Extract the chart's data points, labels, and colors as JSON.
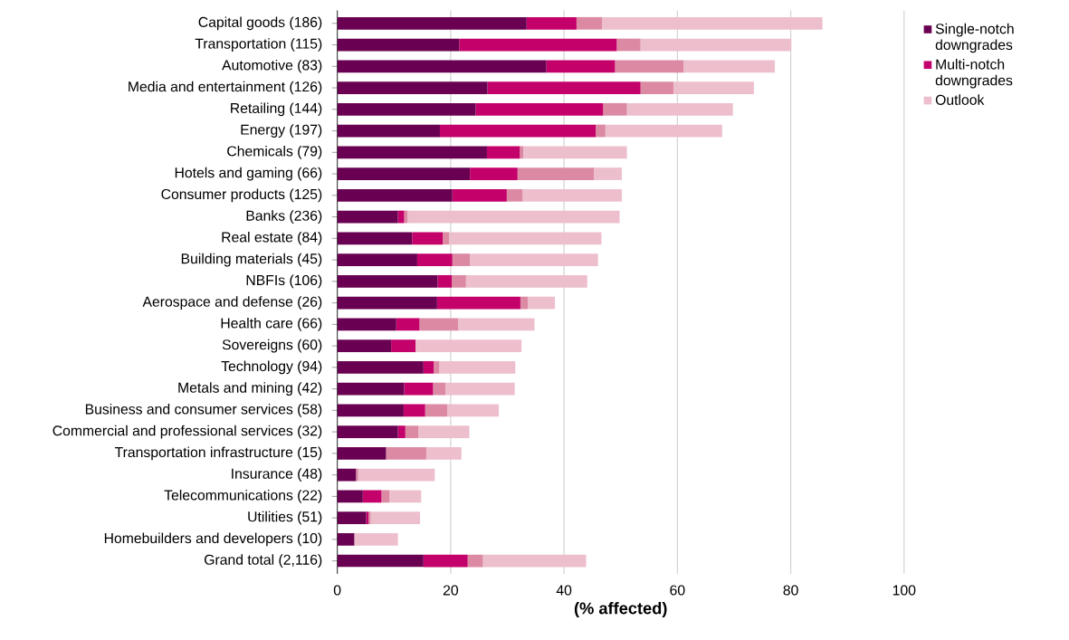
{
  "chart_data": {
    "type": "bar",
    "orientation": "horizontal",
    "stacked": true,
    "categories": [
      "Capital goods (186)",
      "Transportation (115)",
      "Automotive (83)",
      "Media and entertainment (126)",
      "Retailing (144)",
      "Energy (197)",
      "Chemicals (79)",
      "Hotels and gaming (66)",
      "Consumer products (125)",
      "Banks (236)",
      "Real estate (84)",
      "Building materials (45)",
      "NBFIs (106)",
      "Aerospace and defense (26)",
      "Health care (66)",
      "Sovereigns (60)",
      "Technology (94)",
      "Metals and mining (42)",
      "Business and consumer services (58)",
      "Commercial and professional services (32)",
      "Transportation infrastructure (15)",
      "Insurance (48)",
      "Telecommunications (22)",
      "Utilities (51)",
      "Homebuilders and developers (10)",
      "Grand total (2,116)"
    ],
    "series": [
      {
        "name": "Single-notch downgrades",
        "color": "#6a0052",
        "values": [
          33.4,
          21.5,
          36.9,
          26.5,
          24.4,
          18.1,
          26.4,
          23.4,
          20.3,
          10.7,
          13.2,
          14.1,
          17.7,
          17.6,
          10.4,
          9.5,
          15.2,
          11.8,
          11.7,
          10.7,
          8.6,
          3.3,
          4.5,
          5.1,
          3.0,
          15.2
        ]
      },
      {
        "name": "Multi-notch downgrades",
        "color": "#c4006a",
        "values": [
          8.8,
          27.8,
          12.1,
          27.0,
          22.5,
          27.5,
          5.8,
          8.4,
          9.6,
          1.1,
          5.4,
          6.2,
          2.5,
          14.7,
          4.1,
          4.3,
          1.8,
          5.1,
          3.8,
          1.3,
          0,
          0,
          3.3,
          0.4,
          0,
          7.8
        ]
      },
      {
        "color": "#dc8aa4",
        "values": [
          4.5,
          4.2,
          12.1,
          5.8,
          4.2,
          1.7,
          0.6,
          13.5,
          2.8,
          0.6,
          1.1,
          3.1,
          2.5,
          1.3,
          6.8,
          0,
          1.0,
          2.2,
          3.9,
          2.3,
          7.1,
          0.4,
          1.4,
          0.4,
          0,
          2.7
        ]
      },
      {
        "name": "Outlook",
        "color": "#edbfcc",
        "values": [
          38.9,
          26.6,
          16.1,
          14.2,
          18.7,
          20.6,
          18.3,
          4.9,
          17.5,
          37.4,
          26.9,
          22.6,
          21.4,
          4.8,
          13.5,
          18.7,
          13.4,
          12.2,
          9.1,
          9.0,
          6.2,
          13.5,
          5.6,
          8.7,
          7.7,
          18.2
        ]
      }
    ],
    "xlabel": "(% affected)",
    "xlim": [
      0,
      100
    ],
    "xticks": [
      0,
      20,
      40,
      60,
      80,
      100
    ],
    "grid": "x",
    "legend": "top right"
  }
}
